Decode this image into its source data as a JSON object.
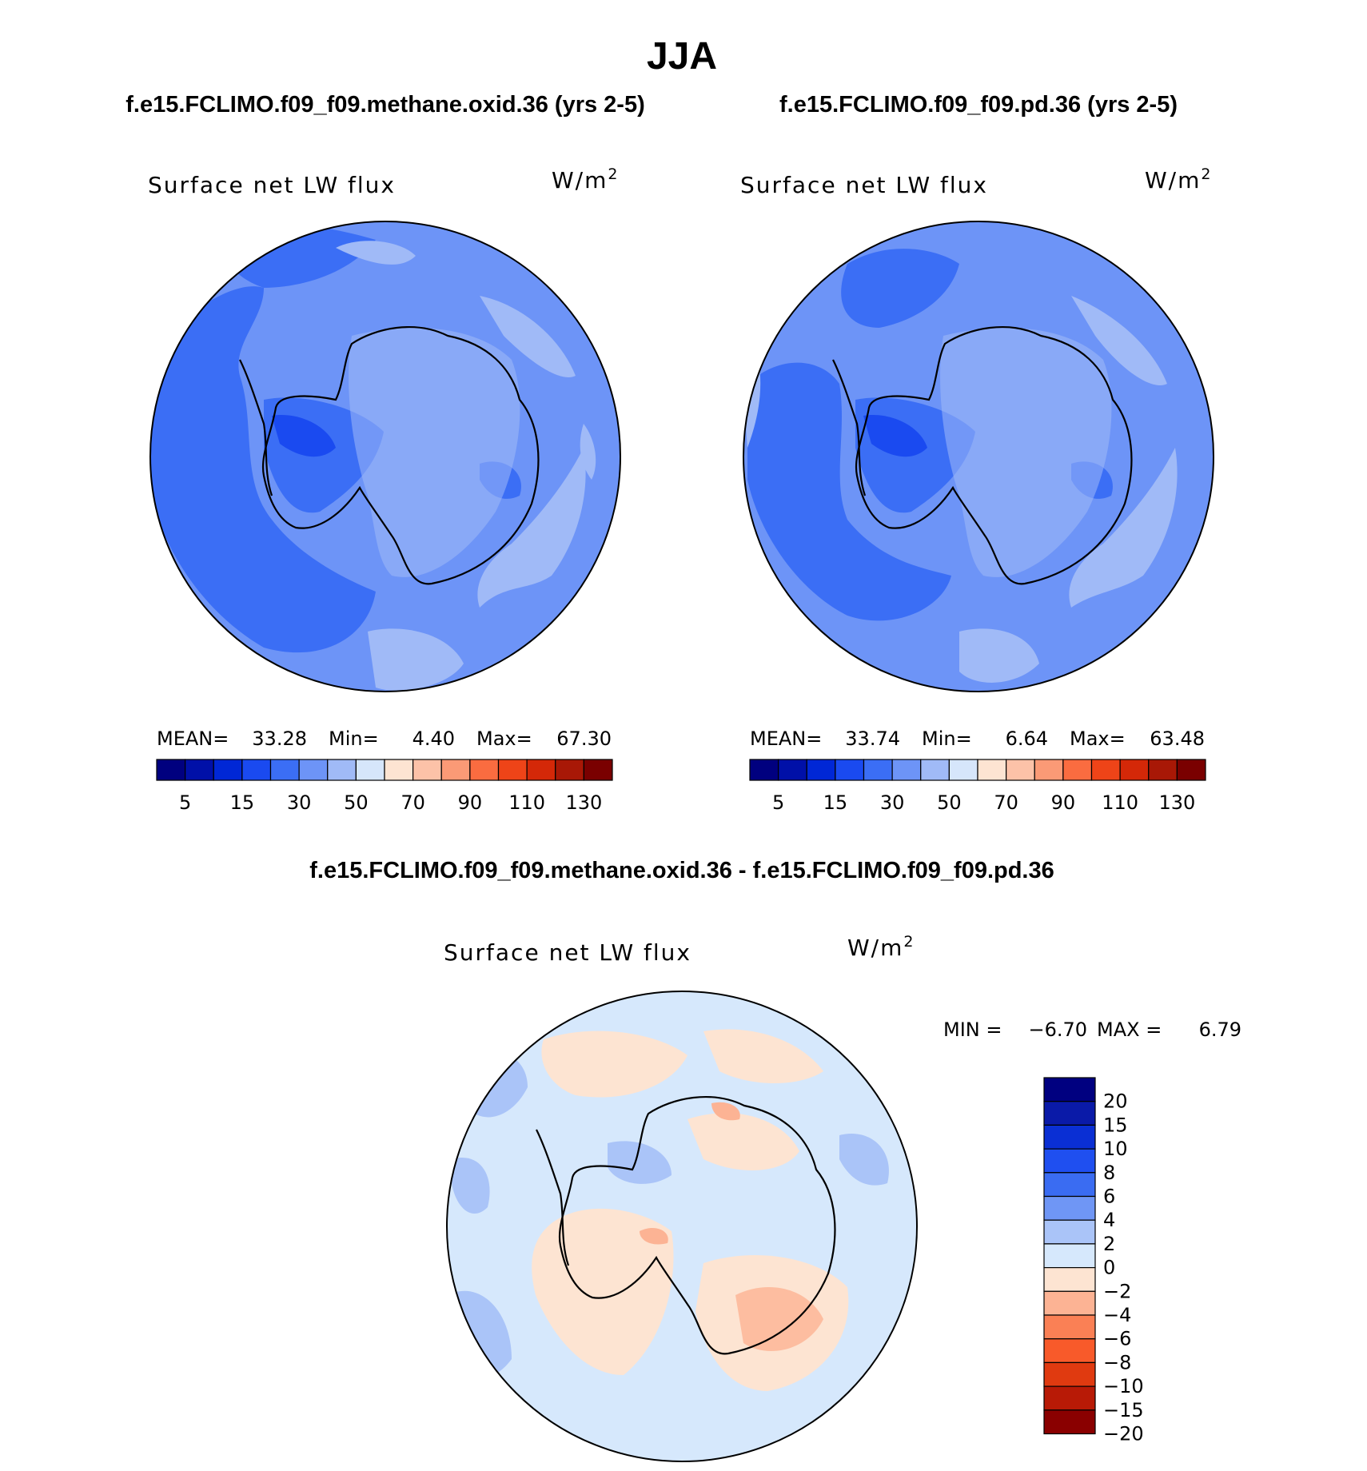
{
  "page_title": "JJA",
  "panels": [
    {
      "case_title": "f.e15.FCLIMO.f09_f09.methane.oxid.36 (yrs 2-5)",
      "variable_label": "Surface net LW flux",
      "units_label": "W/m",
      "units_exp": "2",
      "stats": {
        "mean_label": "MEAN=",
        "mean": "33.28",
        "min_label": "Min=",
        "min": "4.40",
        "max_label": "Max=",
        "max": "67.30"
      }
    },
    {
      "case_title": "f.e15.FCLIMO.f09_f09.pd.36 (yrs 2-5)",
      "variable_label": "Surface net LW flux",
      "units_label": "W/m",
      "units_exp": "2",
      "stats": {
        "mean_label": "MEAN=",
        "mean": "33.74",
        "min_label": "Min=",
        "min": "6.64",
        "max_label": "Max=",
        "max": "63.48"
      }
    }
  ],
  "difference_panel": {
    "case_title": "f.e15.FCLIMO.f09_f09.methane.oxid.36 - f.e15.FCLIMO.f09_f09.pd.36",
    "variable_label": "Surface net LW flux",
    "units_label": "W/m",
    "units_exp": "2",
    "stats": {
      "min_label": "MIN =",
      "min": "−6.70",
      "max_label": "MAX =",
      "max": "6.79"
    }
  },
  "abs_colorbar": {
    "colors": [
      "#00007f",
      "#0010a8",
      "#0027d6",
      "#1a4af0",
      "#3b6ef5",
      "#6d94f7",
      "#a0baf7",
      "#d6e6fb",
      "#fde4d2",
      "#fcc2a8",
      "#fb9a76",
      "#fa6c40",
      "#ee4418",
      "#d42808",
      "#a81806",
      "#7a0000"
    ],
    "tick_labels": [
      "5",
      "15",
      "30",
      "50",
      "70",
      "90",
      "110",
      "130"
    ]
  },
  "diff_colorbar": {
    "colors": [
      "#000080",
      "#0a1aa8",
      "#0a2fd4",
      "#1f4ff0",
      "#3a6cf2",
      "#6f96f5",
      "#aac4f8",
      "#d6e8fc",
      "#fde4d2",
      "#fcb394",
      "#fa8055",
      "#f85a2a",
      "#e03a10",
      "#b81a06",
      "#8a0000"
    ],
    "tick_labels": [
      "20",
      "15",
      "10",
      "8",
      "6",
      "4",
      "2",
      "0",
      "−2",
      "−4",
      "−6",
      "−8",
      "−10",
      "−15",
      "−20"
    ]
  }
}
